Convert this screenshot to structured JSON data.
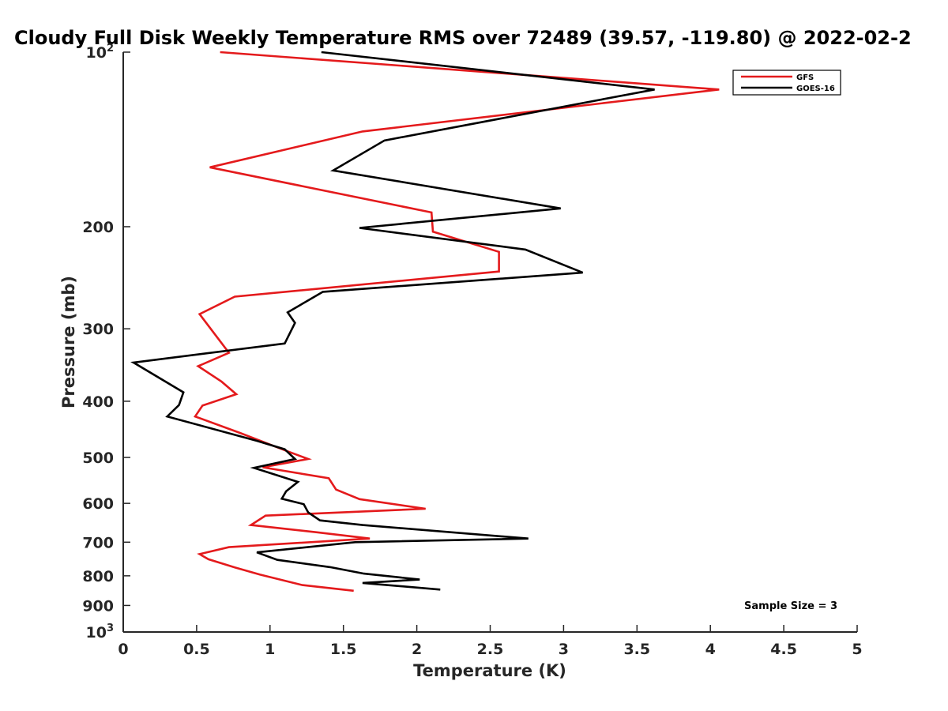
{
  "chart_data": {
    "type": "line",
    "title": "Cloudy Full Disk Weekly Temperature RMS over 72489 (39.57, -119.80) @ 2022-02-2",
    "xlabel": "Temperature (K)",
    "ylabel": "Pressure (mb)",
    "xlim": [
      0,
      5
    ],
    "ylim": [
      100,
      1000
    ],
    "y_scale": "log",
    "y_reversed": true,
    "grid": false,
    "legend_position": "top-right",
    "x_ticks": [
      "0",
      "0.5",
      "1",
      "1.5",
      "2",
      "2.5",
      "3",
      "3.5",
      "4",
      "4.5",
      "5"
    ],
    "x_tick_values": [
      0,
      0.5,
      1,
      1.5,
      2,
      2.5,
      3,
      3.5,
      4,
      4.5,
      5
    ],
    "y_ticks": [
      {
        "value": 100,
        "base": "10",
        "exp": "2"
      },
      {
        "value": 200,
        "base": "200",
        "exp": ""
      },
      {
        "value": 300,
        "base": "300",
        "exp": ""
      },
      {
        "value": 400,
        "base": "400",
        "exp": ""
      },
      {
        "value": 500,
        "base": "500",
        "exp": ""
      },
      {
        "value": 600,
        "base": "600",
        "exp": ""
      },
      {
        "value": 700,
        "base": "700",
        "exp": ""
      },
      {
        "value": 800,
        "base": "800",
        "exp": ""
      },
      {
        "value": 900,
        "base": "900",
        "exp": ""
      },
      {
        "value": 1000,
        "base": "10",
        "exp": "3"
      }
    ],
    "annotation": "Sample Size = 3",
    "series": [
      {
        "name": "GFS",
        "color": "#e41a1c",
        "points": [
          [
            0.66,
            100
          ],
          [
            4.06,
            116
          ],
          [
            1.63,
            137
          ],
          [
            0.59,
            158
          ],
          [
            2.1,
            189
          ],
          [
            2.11,
            204
          ],
          [
            2.56,
            221
          ],
          [
            2.56,
            239
          ],
          [
            0.76,
            264
          ],
          [
            0.52,
            283
          ],
          [
            0.72,
            330
          ],
          [
            0.51,
            348
          ],
          [
            0.67,
            370
          ],
          [
            0.77,
            389
          ],
          [
            0.54,
            407
          ],
          [
            0.49,
            425
          ],
          [
            0.79,
            453
          ],
          [
            1.12,
            488
          ],
          [
            1.26,
            503
          ],
          [
            0.95,
            520
          ],
          [
            1.4,
            543
          ],
          [
            1.45,
            568
          ],
          [
            1.61,
            590
          ],
          [
            2.06,
            613
          ],
          [
            0.97,
            630
          ],
          [
            0.87,
            654
          ],
          [
            1.32,
            673
          ],
          [
            1.68,
            690
          ],
          [
            0.72,
            714
          ],
          [
            0.52,
            734
          ],
          [
            0.58,
            749
          ],
          [
            0.76,
            774
          ],
          [
            0.93,
            796
          ],
          [
            1.22,
            830
          ],
          [
            1.57,
            849
          ]
        ]
      },
      {
        "name": "GOES-16",
        "color": "#000000",
        "points": [
          [
            1.35,
            100
          ],
          [
            3.62,
            116
          ],
          [
            1.78,
            142
          ],
          [
            1.43,
            160
          ],
          [
            2.98,
            186
          ],
          [
            1.61,
            201
          ],
          [
            2.74,
            219
          ],
          [
            3.13,
            240
          ],
          [
            1.36,
            259
          ],
          [
            1.12,
            281
          ],
          [
            1.17,
            293
          ],
          [
            1.1,
            318
          ],
          [
            0.07,
            343
          ],
          [
            0.41,
            386
          ],
          [
            0.38,
            406
          ],
          [
            0.3,
            425
          ],
          [
            0.91,
            468
          ],
          [
            1.1,
            484
          ],
          [
            1.17,
            503
          ],
          [
            0.89,
            521
          ],
          [
            1.19,
            551
          ],
          [
            1.11,
            572
          ],
          [
            1.08,
            589
          ],
          [
            1.23,
            602
          ],
          [
            1.26,
            622
          ],
          [
            1.34,
            642
          ],
          [
            1.63,
            654
          ],
          [
            2.76,
            690
          ],
          [
            1.58,
            700
          ],
          [
            0.91,
            729
          ],
          [
            1.05,
            751
          ],
          [
            1.41,
            773
          ],
          [
            1.64,
            793
          ],
          [
            2.02,
            812
          ],
          [
            1.63,
            823
          ],
          [
            2.16,
            845
          ]
        ]
      }
    ]
  }
}
